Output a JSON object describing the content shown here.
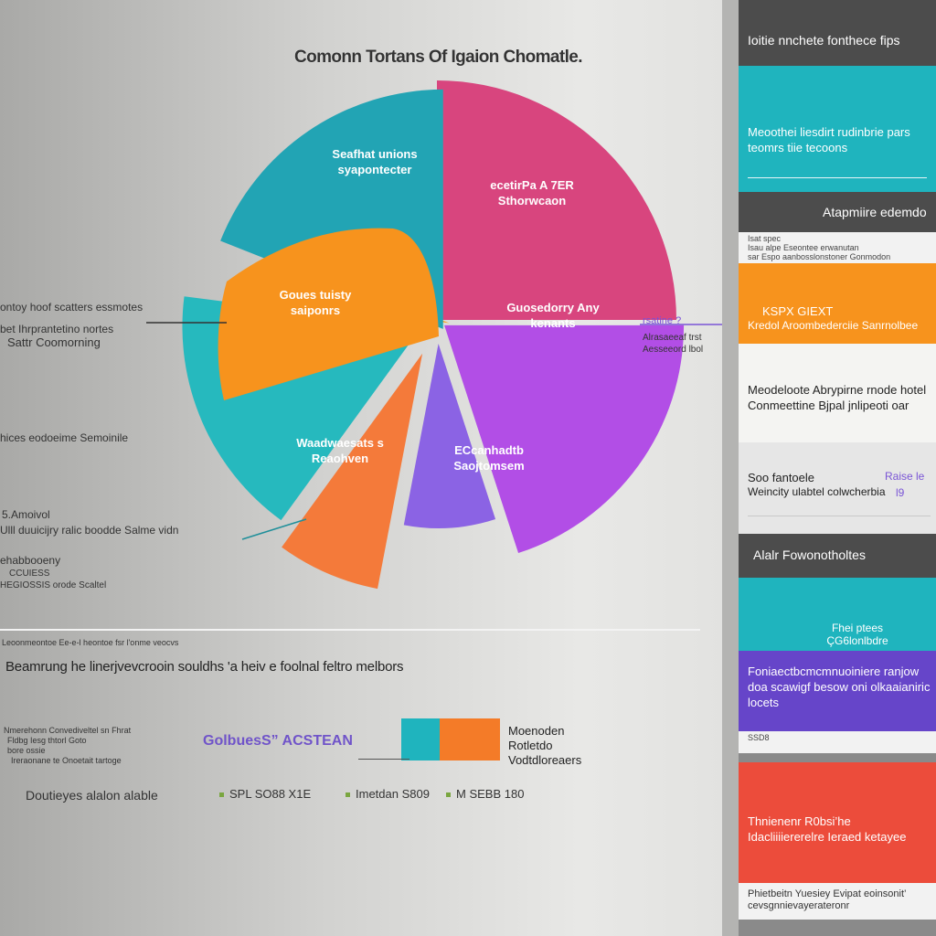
{
  "chart_data": {
    "type": "pie",
    "title": "Comonn Tortans Of Igaion Chomatle.",
    "slices": [
      {
        "label": "Seafhat unions syapontecter",
        "value": 25.0,
        "color": "#d8457e"
      },
      {
        "label": "ecetirPa A 7ER Sthorwcaon",
        "value": 20.0,
        "color": "#b24ee6"
      },
      {
        "label": "Guosedorry Any kenants",
        "value": 8.0,
        "color": "#8b63e4"
      },
      {
        "label": "",
        "value": 7.0,
        "color": "#f47a3a"
      },
      {
        "label": "ECcanhadtb Saojtomsem",
        "value": 17.0,
        "color": "#26b9be"
      },
      {
        "label": "",
        "value": 4.0,
        "color": "#f7a526"
      },
      {
        "label": "Waadwaesats s Reaohven",
        "value": 19.0,
        "color": "#22a4b4"
      }
    ],
    "orange_overlay": {
      "label": "Goues tuisty saiponrs",
      "color": "#f7931d"
    }
  },
  "left_labels": {
    "l1": "ontoy hoof scatters essmotes",
    "l2": "bet Ihrprantetino nortes",
    "l3": "Sattr  Coomorning",
    "l4": "hices eodoeime Semoinile",
    "l5": "5.Amoivol",
    "l6": "Ulll duuicijry ralic boodde Salme vidn",
    "l7": "ehabbooeny",
    "l8": "CCUIESS",
    "l9": "HEGIOSSIS orode Scaltel"
  },
  "right_labels": {
    "p1": "rsatine ?",
    "p2": "Alrasaeeaf trst",
    "p3": "Aesseeord lbol"
  },
  "bottom": {
    "note": "Leoonmeontoe Ee-e-l heontoe fsr l'onme veocvs",
    "heading": "Beamrung he linerjvevcrooin souldhs 'a heiv e foolnal feltro melbors",
    "legend_lines": [
      "Nmerehonn Convediveltel sn Fhrat",
      "Fldbg Iesg thtorl Goto",
      "bore ossie",
      "Ireraonane te Onoetait tartoge"
    ],
    "purple_text": "GolbuesS” ACSTEAN",
    "legend_title": "Moenoden",
    "legend_sub1": "Rotletdo",
    "legend_sub2": "Vodtdloreaers",
    "footer_label": "Doutieyes alalon alable",
    "stat1": "SPL SO88 X1E",
    "stat2": "Imetdan S809",
    "stat3": "M SEBB 180"
  },
  "right_panel": {
    "header": "Ioitie nnchete fonthece fips",
    "card1_text": "Meoothei liesdirt rudinbrie pars teomrs tiie tecoons",
    "heading2": "Atapmiire edemdo",
    "card2_small1": "Isat spec",
    "card2_small2": "Isau alpe Eseontee erwanutan",
    "card2_small3": "sar Espo aanbosslonstoner Gonmodon",
    "card3_text1": "KSPX      GIEXT",
    "card3_text2": "Kredol Aroombederciie Sanrnolbee",
    "card4_text": "Meodeloote Abrypirne rnode hotel Conmeettine Bjpal jnlipeoti oar",
    "card5_text1": "Soo fantoele",
    "card5_text2": "Weincity ulabtel colwcherbia",
    "card5_purple1": "Raise le",
    "card5_purple2": "l9",
    "heading3": "Alalr Fowonotholtes",
    "card6_text": "Fhei ptees ÇG6lonlbdre",
    "card7_text": "Foniaectbcmcmnuoiniere ranjow doa scawigf besow oni olkaaianiric locets",
    "card7_footer": "SSD8",
    "card8_text": "Thnienenr R0bsi’he Idacliiiiererelre Ieraed ketayee",
    "card8_footer": "Phietbeitn Yuesiey Evipat eoinsonit’ cevsgnnievayerateronr"
  },
  "colors": {
    "teal": "#1fb4be",
    "orange": "#f7931d",
    "purple": "#6645c9",
    "red": "#ec4c3b",
    "dark": "#4f4f4f"
  }
}
